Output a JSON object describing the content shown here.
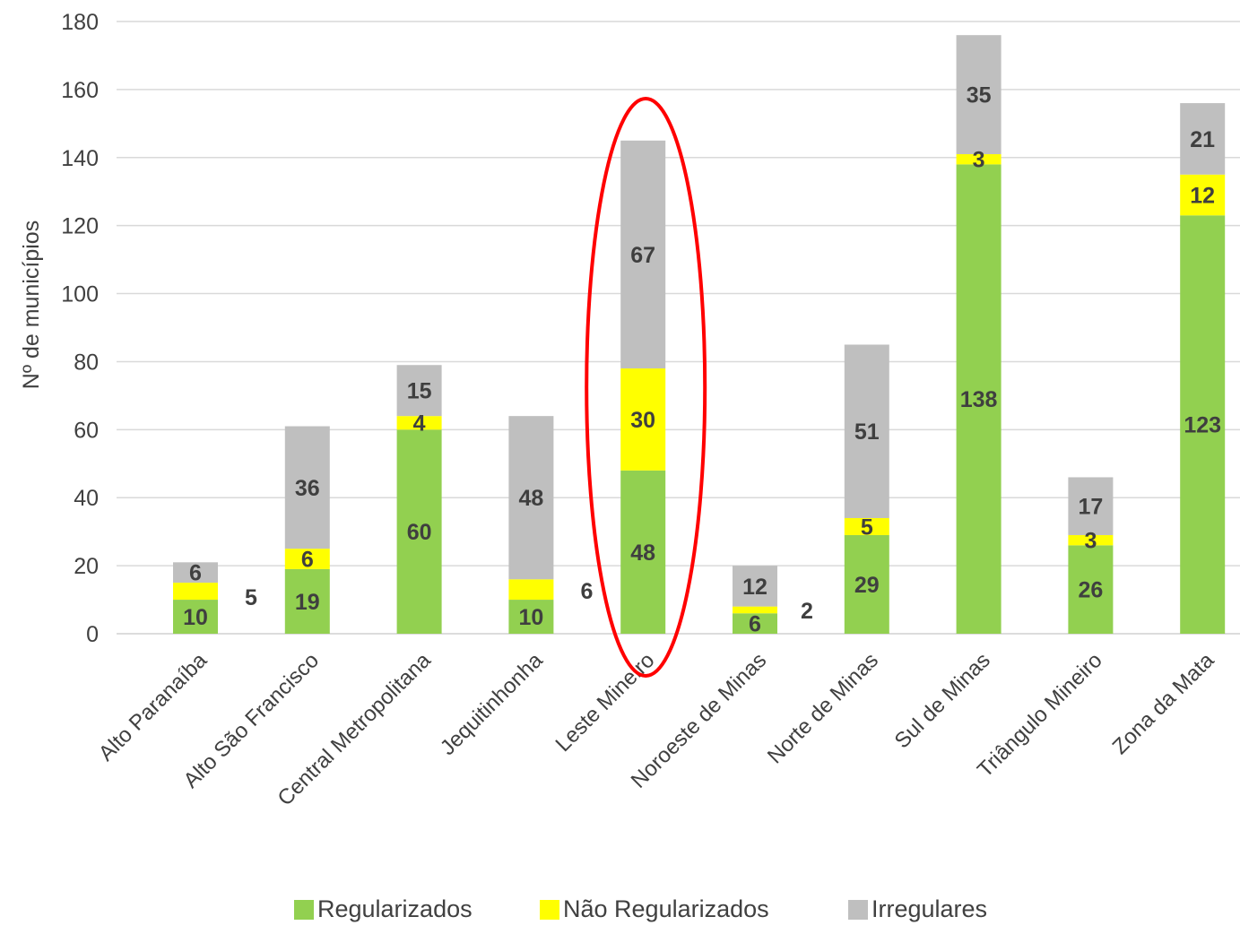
{
  "chart_data": {
    "type": "bar",
    "stacked": true,
    "title": "",
    "xlabel": "",
    "ylabel": "Nº de municípios",
    "ylim": [
      0,
      180
    ],
    "yticks": [
      0,
      20,
      40,
      60,
      80,
      100,
      120,
      140,
      160,
      180
    ],
    "grid": "horizontal",
    "legend_position": "bottom",
    "categories": [
      "Alto Paranaíba",
      "Alto São Francisco",
      "Central Metropolitana",
      "Jequitinhonha",
      "Leste Mineiro",
      "Noroeste de Minas",
      "Norte de Minas",
      "Sul de Minas",
      "Triângulo Mineiro",
      "Zona da Mata"
    ],
    "series": [
      {
        "name": "Regularizados",
        "color": "#92d050",
        "values": [
          10,
          19,
          60,
          10,
          48,
          6,
          29,
          138,
          26,
          123
        ]
      },
      {
        "name": "Não Regularizados",
        "color": "#ffff00",
        "values": [
          5,
          6,
          4,
          6,
          30,
          2,
          5,
          3,
          3,
          12
        ]
      },
      {
        "name": "Irregulares",
        "color": "#bfbfbf",
        "values": [
          6,
          36,
          15,
          48,
          67,
          12,
          51,
          35,
          17,
          21
        ]
      }
    ],
    "annotations": [
      {
        "type": "ellipse",
        "target_category": "Leste Mineiro",
        "color": "#ff0000"
      }
    ]
  }
}
